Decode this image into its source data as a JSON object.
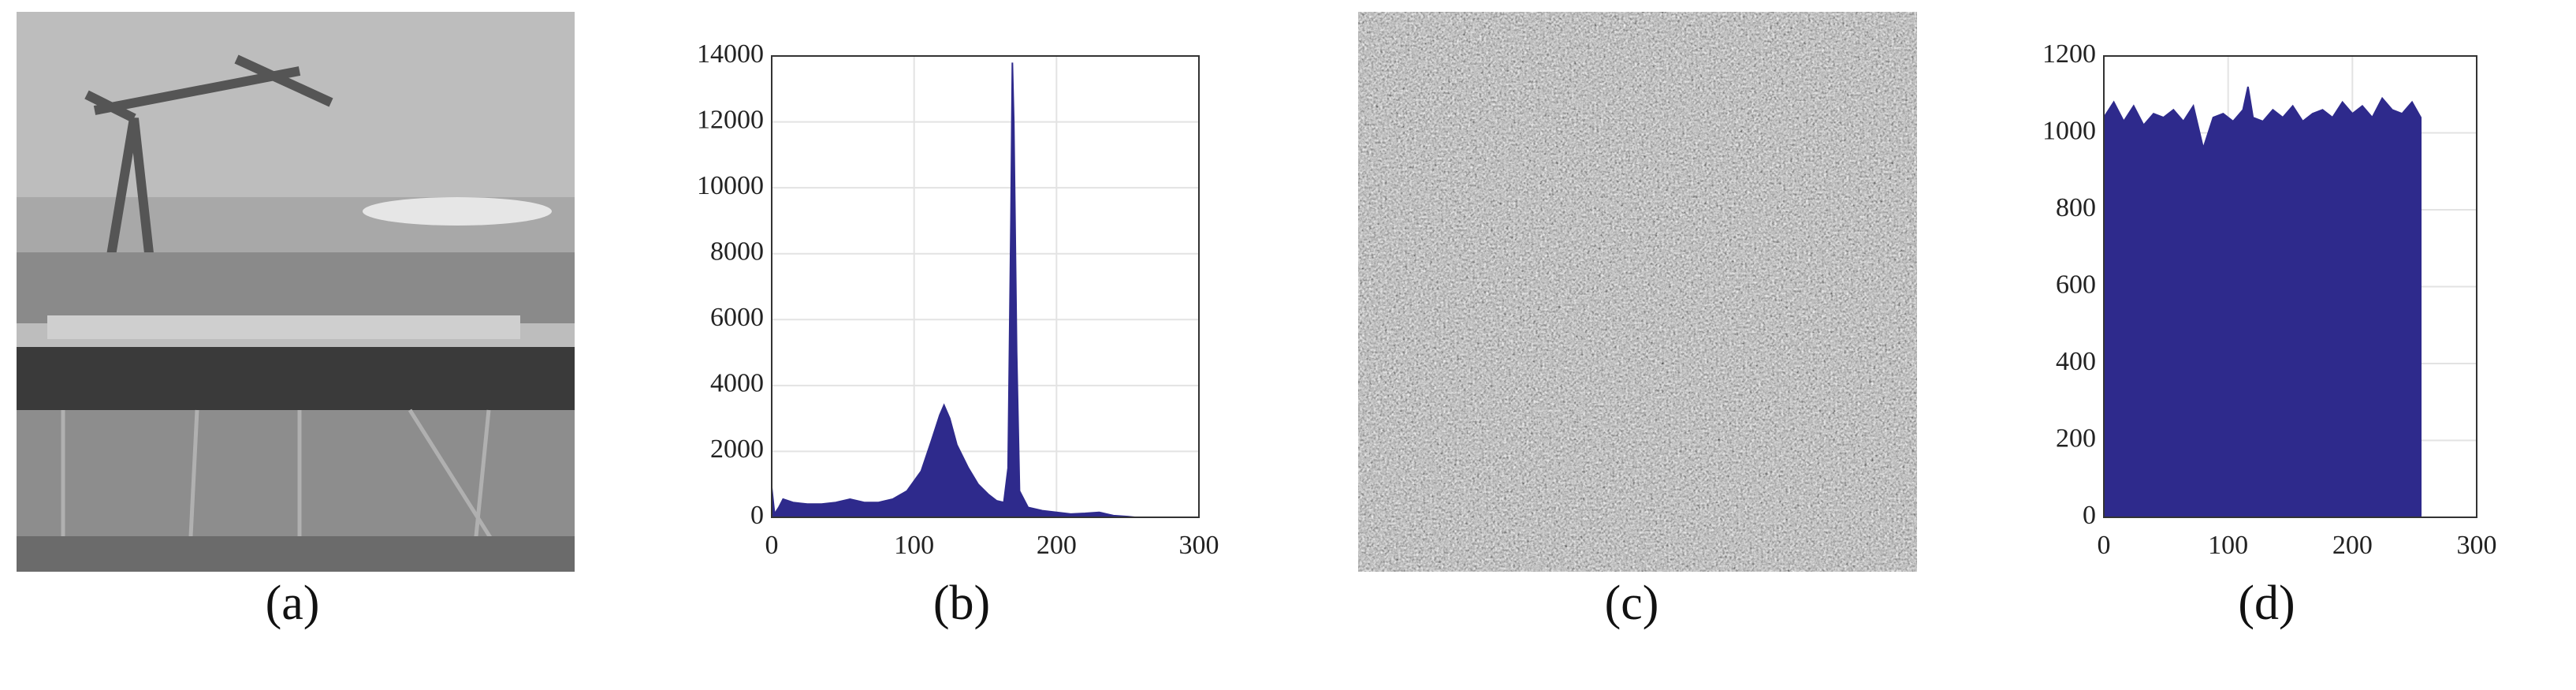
{
  "images": [
    {
      "caption": "(a)"
    },
    {
      "caption": "(c)"
    }
  ],
  "chart_data": [
    {
      "type": "area",
      "caption": "(b)",
      "color": "#2e2a8c",
      "grid": true,
      "x": [
        0,
        2,
        5,
        8,
        15,
        25,
        35,
        45,
        55,
        65,
        75,
        85,
        95,
        105,
        112,
        118,
        121,
        125,
        130,
        138,
        145,
        152,
        158,
        163,
        166,
        168,
        169,
        170,
        172,
        174,
        180,
        190,
        200,
        210,
        220,
        230,
        235,
        240,
        250,
        255
      ],
      "values": [
        900,
        100,
        300,
        550,
        450,
        400,
        400,
        450,
        550,
        450,
        450,
        550,
        800,
        1400,
        2300,
        3100,
        3400,
        3000,
        2200,
        1500,
        1000,
        700,
        500,
        450,
        1500,
        9000,
        13800,
        12000,
        5000,
        800,
        300,
        200,
        150,
        100,
        120,
        150,
        100,
        50,
        20,
        0
      ],
      "xlim": [
        0,
        300
      ],
      "xticks": [
        0,
        100,
        200,
        300
      ],
      "ylim": [
        0,
        14000
      ],
      "yticks": [
        0,
        2000,
        4000,
        6000,
        8000,
        10000,
        12000,
        14000
      ]
    },
    {
      "type": "area",
      "caption": "(d)",
      "color": "#2e2a8c",
      "grid": true,
      "x": [
        0,
        8,
        16,
        24,
        32,
        40,
        48,
        56,
        64,
        72,
        80,
        88,
        96,
        104,
        112,
        116,
        120,
        128,
        136,
        144,
        152,
        160,
        168,
        176,
        184,
        192,
        200,
        208,
        216,
        224,
        232,
        240,
        248,
        255
      ],
      "values": [
        1040,
        1080,
        1030,
        1070,
        1020,
        1050,
        1040,
        1060,
        1030,
        1070,
        960,
        1040,
        1050,
        1030,
        1060,
        1120,
        1040,
        1030,
        1060,
        1040,
        1070,
        1030,
        1050,
        1060,
        1040,
        1080,
        1050,
        1070,
        1040,
        1090,
        1060,
        1050,
        1080,
        1040
      ],
      "xlim": [
        0,
        300
      ],
      "xticks": [
        0,
        100,
        200,
        300
      ],
      "ylim": [
        0,
        1200
      ],
      "yticks": [
        0,
        200,
        400,
        600,
        800,
        1000,
        1200
      ]
    }
  ]
}
